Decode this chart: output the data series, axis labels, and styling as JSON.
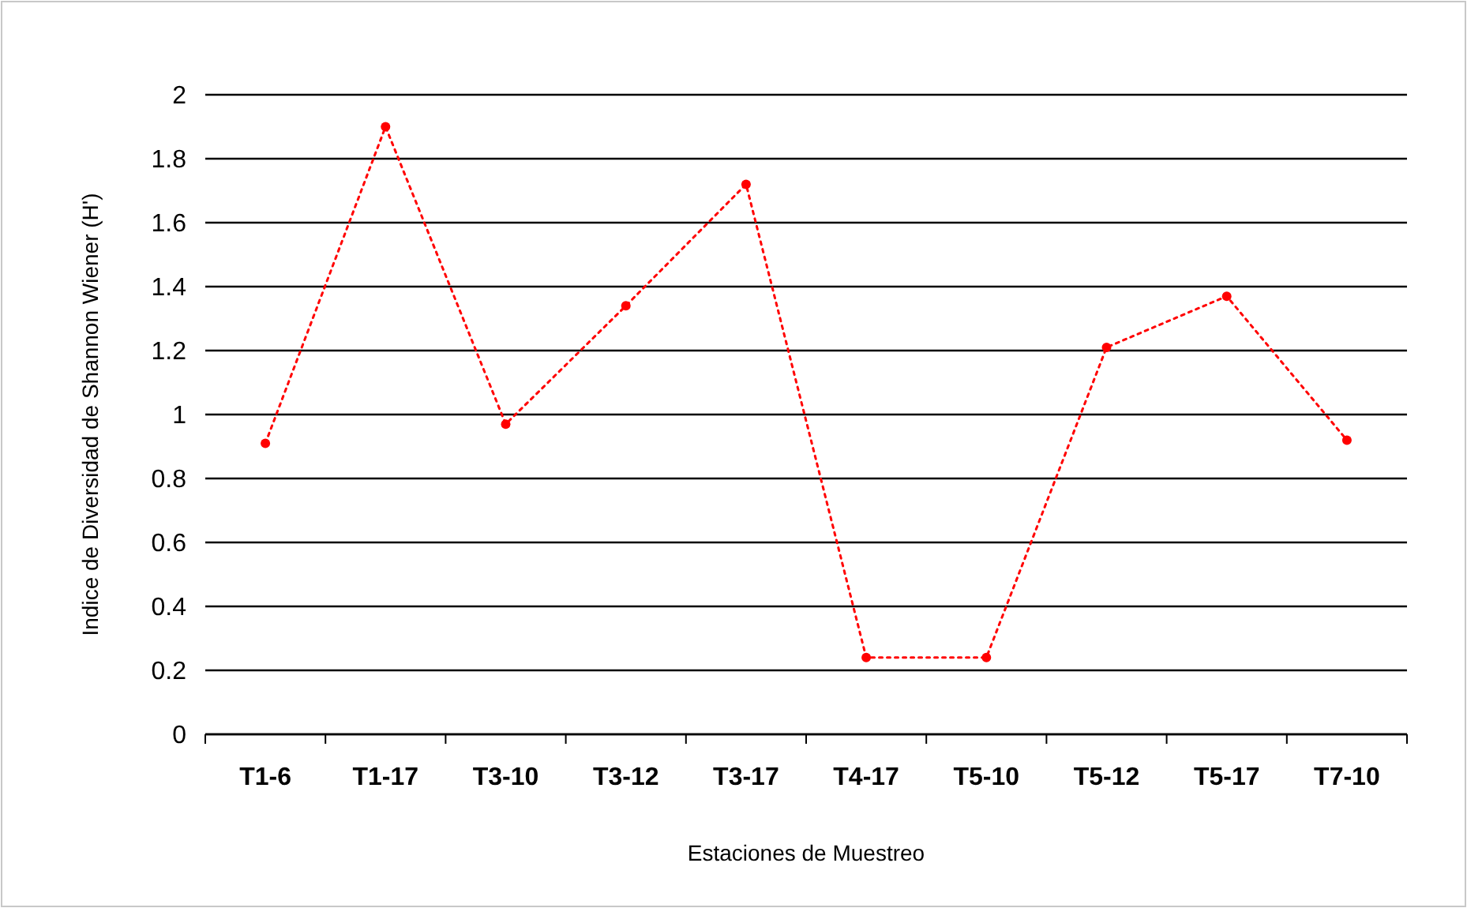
{
  "chart_data": {
    "type": "line",
    "xlabel": "Estaciones de Muestreo",
    "ylabel": "Indice de Diversidad de Shannon Wiener (H')",
    "categories": [
      "T1-6",
      "T1-17",
      "T3-10",
      "T3-12",
      "T3-17",
      "T4-17",
      "T5-10",
      "T5-12",
      "T5-17",
      "T7-10"
    ],
    "series": [
      {
        "color": "#ff0000",
        "values": [
          0.91,
          1.9,
          0.97,
          1.34,
          1.72,
          0.24,
          0.24,
          1.21,
          1.37,
          0.92
        ]
      }
    ],
    "ylim": [
      0,
      2
    ],
    "yticks": [
      0,
      0.2,
      0.4,
      0.6,
      0.8,
      1,
      1.2,
      1.4,
      1.6,
      1.8,
      2
    ],
    "grid": "y",
    "marker": "circle",
    "line_style": "dotted"
  }
}
